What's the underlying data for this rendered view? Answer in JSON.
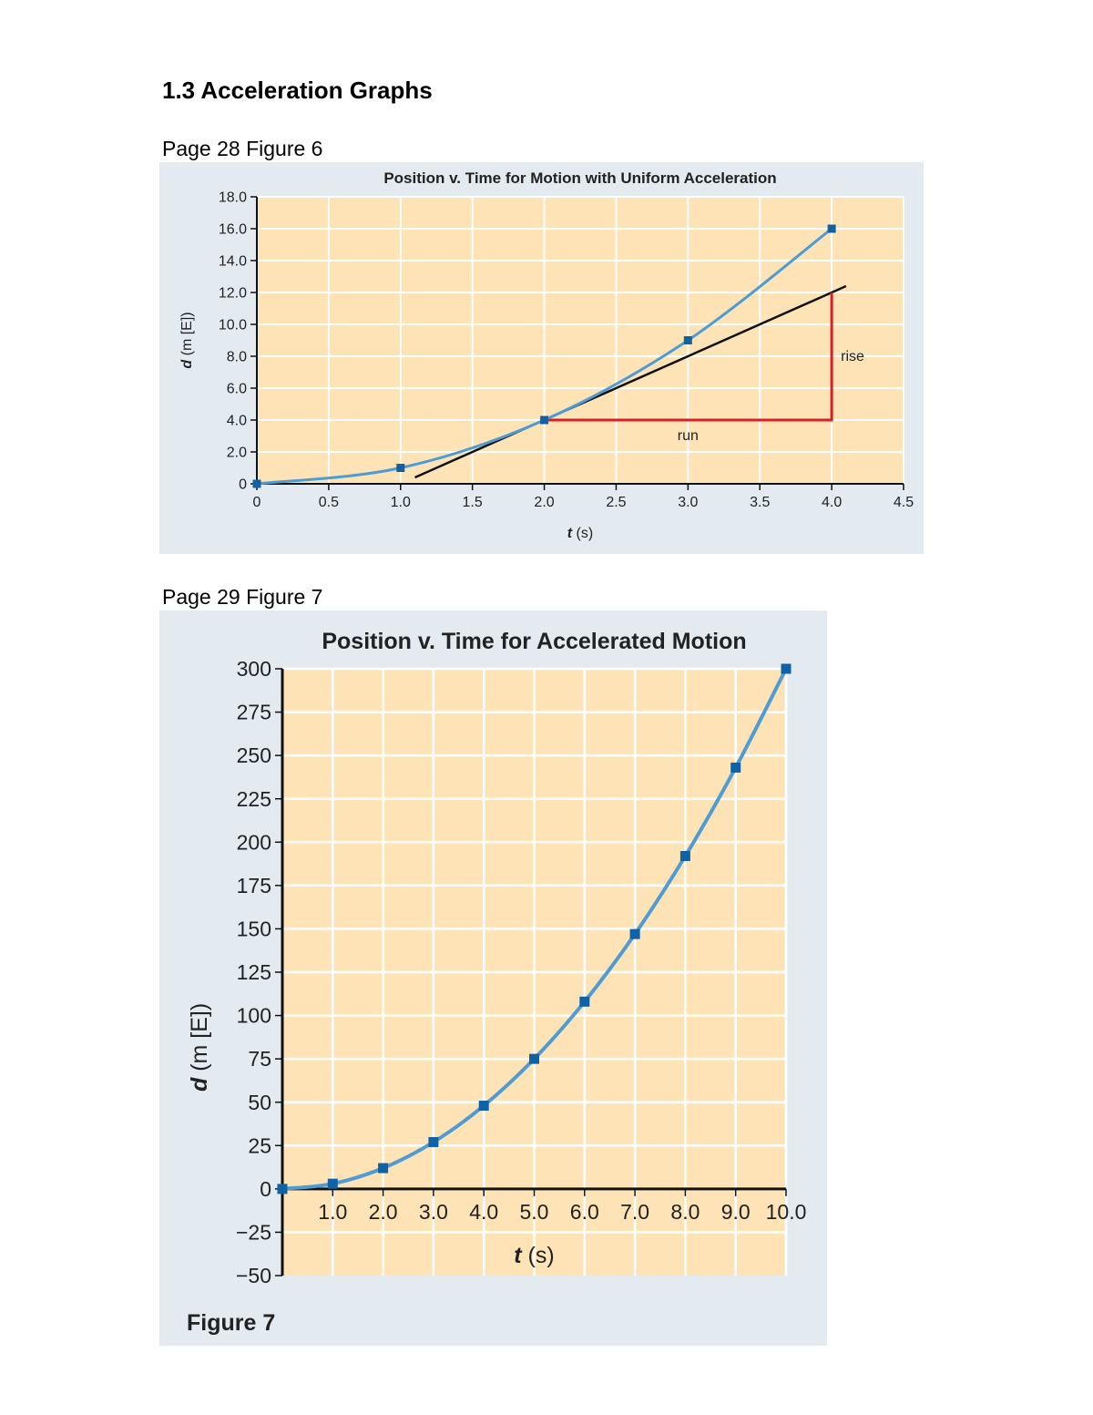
{
  "heading": "1.3 Acceleration Graphs",
  "figure6_caption": "Page 28 Figure 6",
  "figure7_caption": "Page 29 Figure 7",
  "colors": {
    "panel": "#e3eaf0",
    "plot_bg": "#fde3b6",
    "grid": "#ffffff",
    "curve": "#4f9bd4",
    "marker": "#0f62a6",
    "tangent": "#111111",
    "triangle": "#d62028"
  },
  "chart_data": [
    {
      "type": "line",
      "title": "Position v. Time for Motion with Uniform Acceleration",
      "xlabel_var": "t",
      "xlabel_unit": " (s)",
      "ylabel_var": "d",
      "ylabel_unit": " (m [E])",
      "xlim": [
        0,
        4.5
      ],
      "ylim": [
        0,
        18
      ],
      "xticks": [
        "0",
        "0.5",
        "1.0",
        "1.5",
        "2.0",
        "2.5",
        "3.0",
        "3.5",
        "4.0",
        "4.5"
      ],
      "xtick_values": [
        0,
        0.5,
        1.0,
        1.5,
        2.0,
        2.5,
        3.0,
        3.5,
        4.0,
        4.5
      ],
      "yticks": [
        "0",
        "2.0",
        "4.0",
        "6.0",
        "8.0",
        "10.0",
        "12.0",
        "14.0",
        "16.0",
        "18.0"
      ],
      "ytick_values": [
        0,
        2,
        4,
        6,
        8,
        10,
        12,
        14,
        16,
        18
      ],
      "grid": true,
      "series": [
        {
          "x": [
            0,
            1.0,
            2.0,
            3.0,
            4.0
          ],
          "y": [
            0,
            1.0,
            4.0,
            9.0,
            16.0
          ]
        }
      ],
      "tangent_line": {
        "x": [
          1.1,
          4.1
        ],
        "y": [
          0.4,
          12.4
        ]
      },
      "annotations": {
        "run_label": "run",
        "rise_label": "rise",
        "triangle": {
          "x": [
            2.0,
            4.0
          ],
          "y": [
            4.0,
            12.0
          ]
        }
      }
    },
    {
      "type": "line",
      "title": "Position v. Time for Accelerated Motion",
      "xlabel_var": "t",
      "xlabel_unit": " (s)",
      "ylabel_var": "d",
      "ylabel_unit": " (m [E])",
      "xlim": [
        0,
        10
      ],
      "ylim": [
        -50,
        300
      ],
      "xticks": [
        "1.0",
        "2.0",
        "3.0",
        "4.0",
        "5.0",
        "6.0",
        "7.0",
        "8.0",
        "9.0",
        "10.0"
      ],
      "xtick_values": [
        1,
        2,
        3,
        4,
        5,
        6,
        7,
        8,
        9,
        10
      ],
      "yticks": [
        "−50",
        "−25",
        "0",
        "25",
        "50",
        "75",
        "100",
        "125",
        "150",
        "175",
        "200",
        "225",
        "250",
        "275",
        "300"
      ],
      "ytick_values": [
        -50,
        -25,
        0,
        25,
        50,
        75,
        100,
        125,
        150,
        175,
        200,
        225,
        250,
        275,
        300
      ],
      "grid": true,
      "series": [
        {
          "x": [
            0,
            1,
            2,
            3,
            4,
            5,
            6,
            7,
            8,
            9,
            10
          ],
          "y": [
            0,
            3,
            12,
            27,
            48,
            75,
            108,
            147,
            192,
            243,
            300
          ]
        }
      ],
      "figure_label": "Figure 7"
    }
  ]
}
